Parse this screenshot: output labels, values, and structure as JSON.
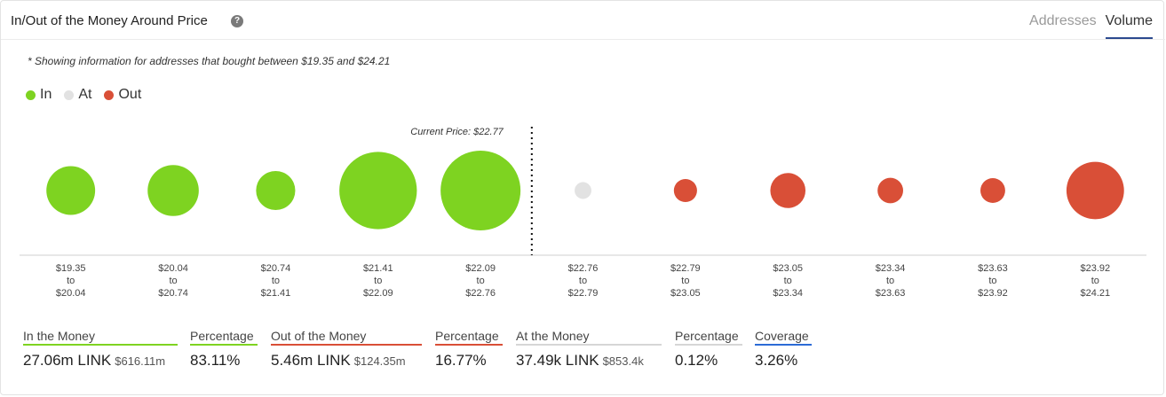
{
  "header": {
    "title": "In/Out of the Money Around Price",
    "help_icon": "question-circle-icon",
    "tabs": [
      {
        "label": "Addresses",
        "active": false
      },
      {
        "label": "Volume",
        "active": true
      }
    ]
  },
  "note": "* Showing information for addresses that bought between $19.35 and $24.21",
  "legend": [
    {
      "label": "In",
      "color": "#7ed321"
    },
    {
      "label": "At",
      "color": "#e2e2e2"
    },
    {
      "label": "Out",
      "color": "#d94f37"
    }
  ],
  "chart_data": {
    "type": "scatter",
    "current_price_label": "Current Price: $22.77",
    "current_price_after_index": 4,
    "categories": [
      {
        "from": "$19.35",
        "to": "$20.04",
        "status": "in",
        "relative_size": 0.61
      },
      {
        "from": "$20.04",
        "to": "$20.74",
        "status": "in",
        "relative_size": 0.64
      },
      {
        "from": "$20.74",
        "to": "$21.41",
        "status": "in",
        "relative_size": 0.49
      },
      {
        "from": "$21.41",
        "to": "$22.09",
        "status": "in",
        "relative_size": 0.97
      },
      {
        "from": "$22.09",
        "to": "$22.76",
        "status": "in",
        "relative_size": 1.0
      },
      {
        "from": "$22.76",
        "to": "$22.79",
        "status": "at",
        "relative_size": 0.21
      },
      {
        "from": "$22.79",
        "to": "$23.05",
        "status": "out",
        "relative_size": 0.29
      },
      {
        "from": "$23.05",
        "to": "$23.34",
        "status": "out",
        "relative_size": 0.44
      },
      {
        "from": "$23.34",
        "to": "$23.63",
        "status": "out",
        "relative_size": 0.32
      },
      {
        "from": "$23.63",
        "to": "$23.92",
        "status": "out",
        "relative_size": 0.31
      },
      {
        "from": "$23.92",
        "to": "$24.21",
        "status": "out",
        "relative_size": 0.72
      }
    ],
    "to_word": "to",
    "colors": {
      "in": "#7ed321",
      "at": "#e2e2e2",
      "out": "#d94f37"
    }
  },
  "stats": {
    "in_money": {
      "label": "In the Money",
      "value": "27.06m LINK",
      "sub": "$616.11m",
      "color": "#7ed321"
    },
    "in_pct": {
      "label": "Percentage",
      "value": "83.11%",
      "color": "#7ed321"
    },
    "out_money": {
      "label": "Out of the Money",
      "value": "5.46m LINK",
      "sub": "$124.35m",
      "color": "#d94f37"
    },
    "out_pct": {
      "label": "Percentage",
      "value": "16.77%",
      "color": "#d94f37"
    },
    "at_money": {
      "label": "At the Money",
      "value": "37.49k LINK",
      "sub": "$853.4k",
      "color": "#d6d6d6"
    },
    "at_pct": {
      "label": "Percentage",
      "value": "0.12%",
      "color": "#d6d6d6"
    },
    "coverage": {
      "label": "Coverage",
      "value": "3.26%",
      "color": "#2c6bd6"
    }
  }
}
